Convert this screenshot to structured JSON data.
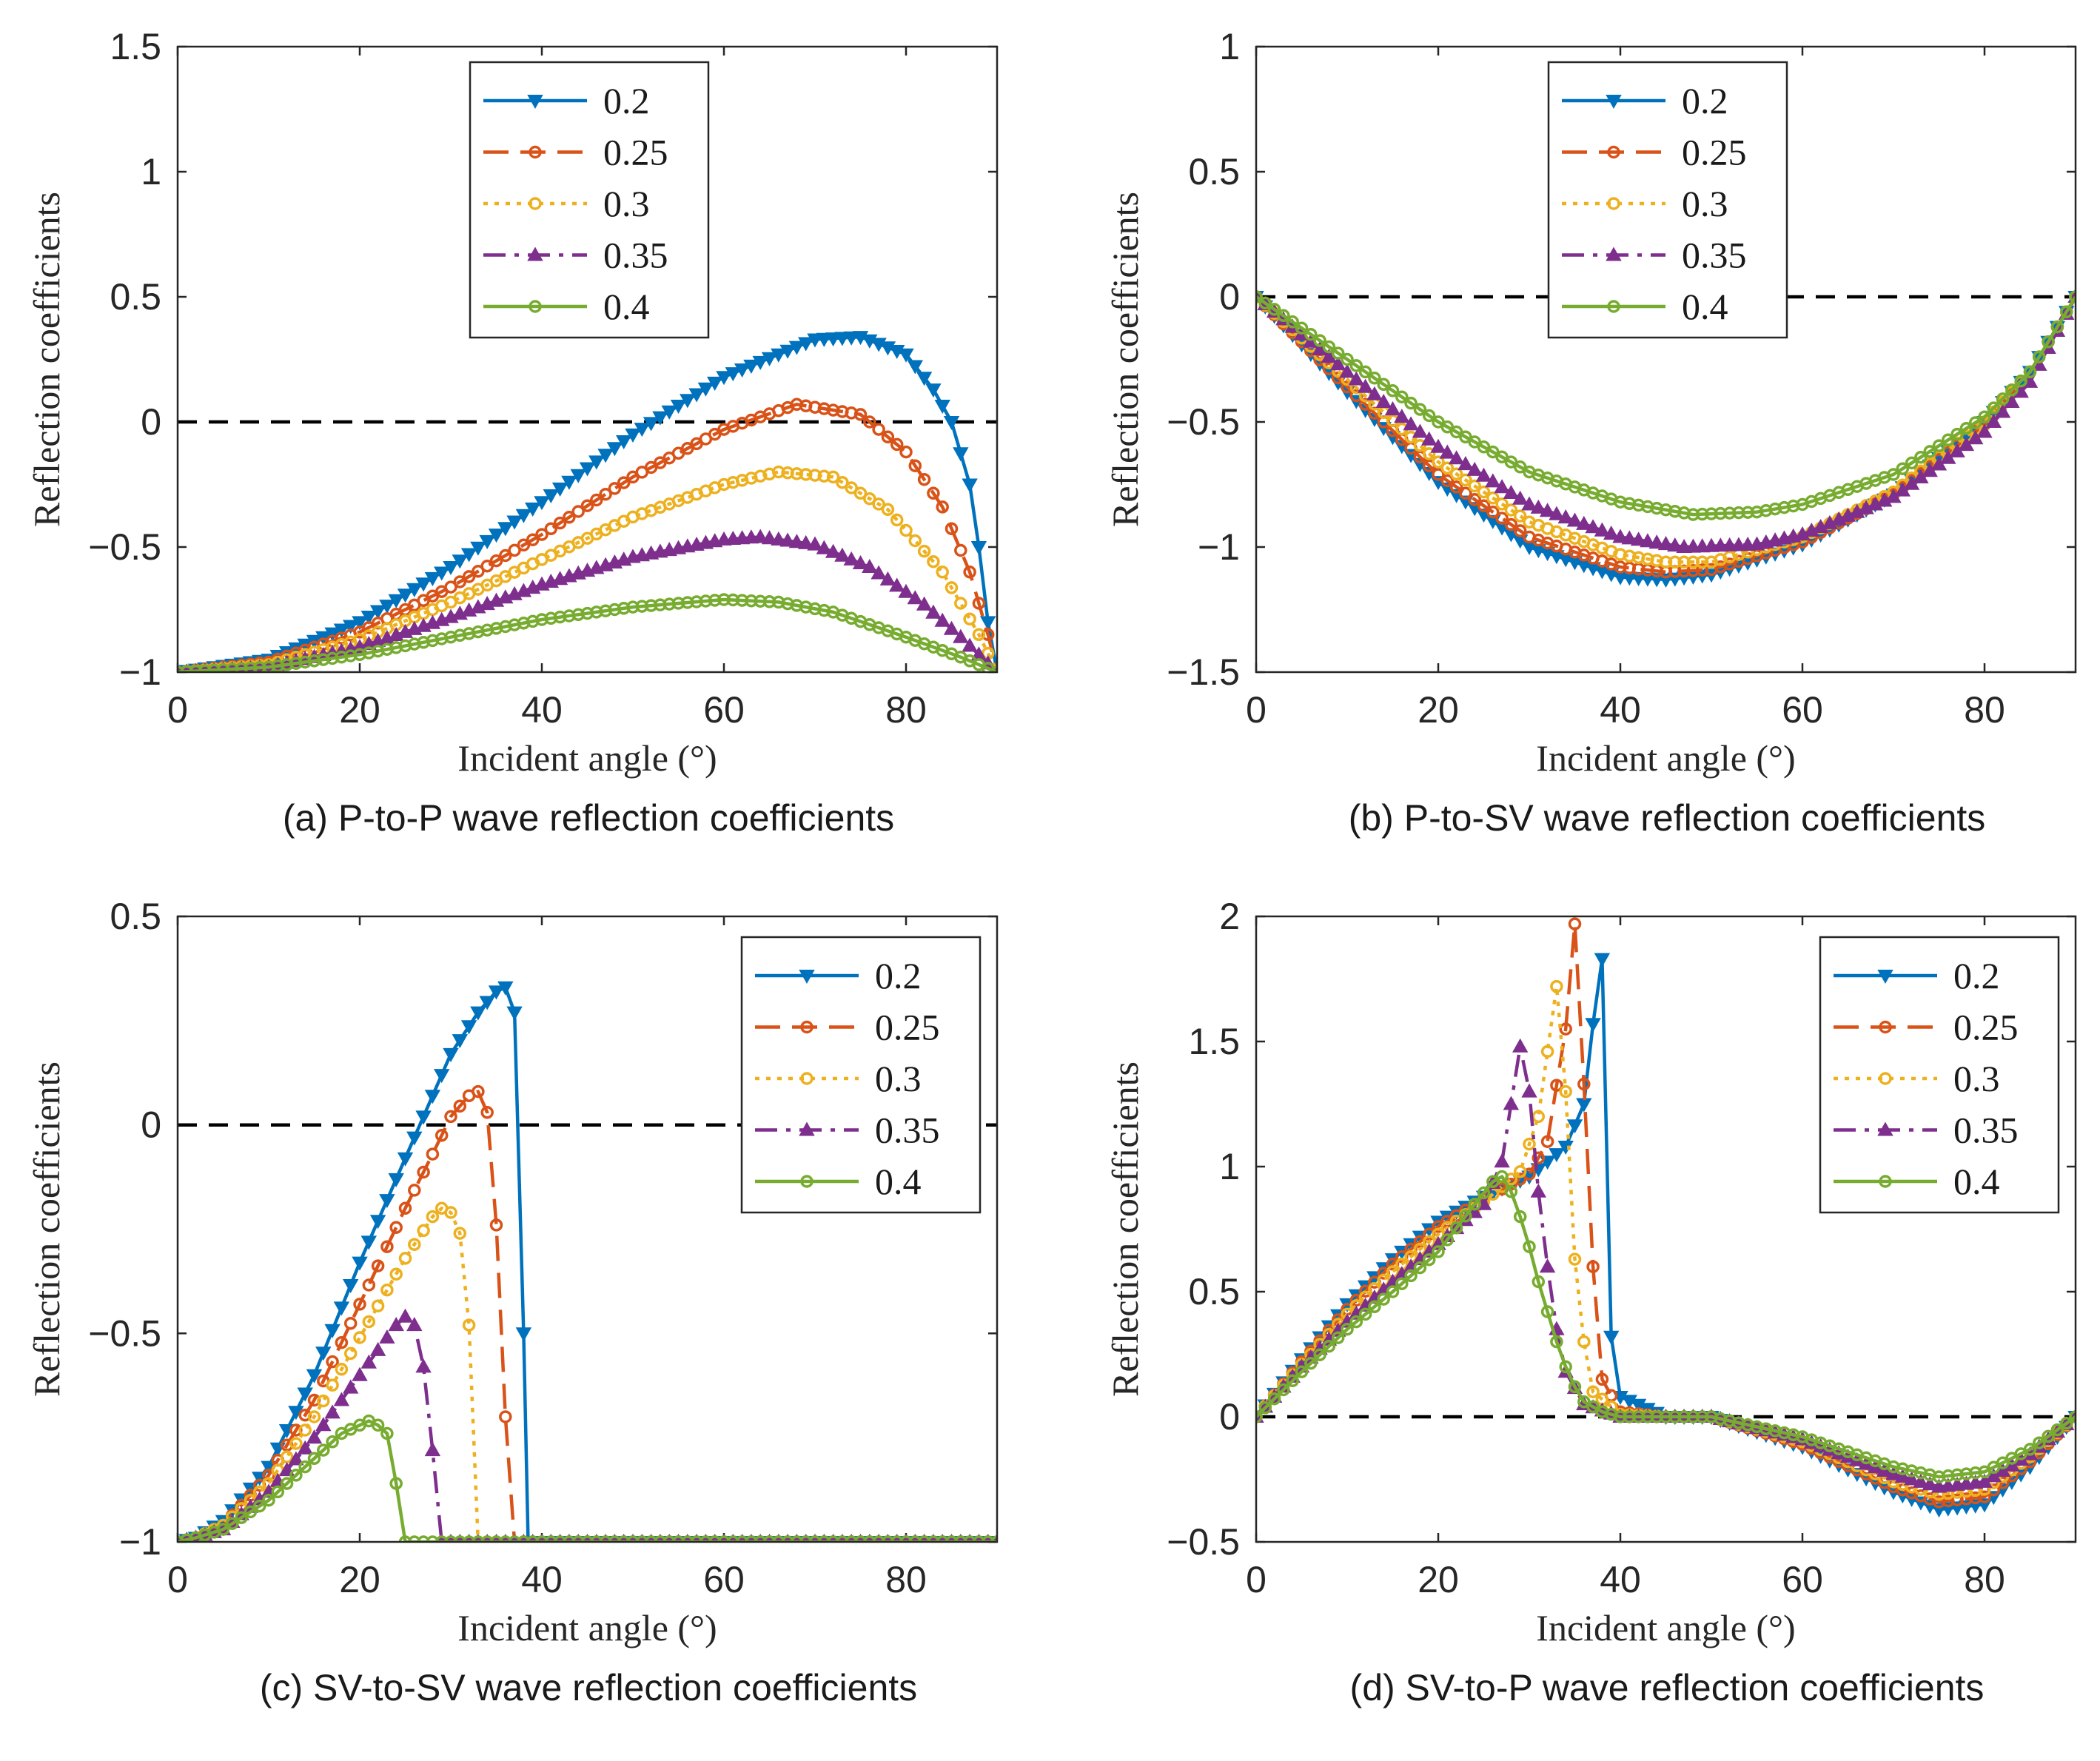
{
  "figure": {
    "background": "#ffffff",
    "series_styles": [
      {
        "name": "0.2",
        "color": "#0072BD",
        "dash": "solid",
        "marker": "triangle-down"
      },
      {
        "name": "0.25",
        "color": "#D95319",
        "dash": "dashed",
        "marker": "circle"
      },
      {
        "name": "0.3",
        "color": "#EDB120",
        "dash": "dotted",
        "marker": "circle"
      },
      {
        "name": "0.35",
        "color": "#7E2F8E",
        "dash": "dashdot",
        "marker": "triangle-up"
      },
      {
        "name": "0.4",
        "color": "#77AC30",
        "dash": "solid",
        "marker": "circle"
      }
    ]
  },
  "chart_data": [
    {
      "id": "a",
      "type": "line",
      "caption": "(a) P-to-P wave reflection coefficients",
      "xlabel": "Incident angle (°)",
      "ylabel": "Reflection coefficients",
      "xlim": [
        0,
        90
      ],
      "ylim": [
        -1,
        1.5
      ],
      "xticks": [
        0,
        20,
        40,
        60,
        80
      ],
      "yticks": [
        -1,
        -0.5,
        0,
        0.5,
        1,
        1.5
      ],
      "ytick_labels": [
        "−1",
        "−0.5",
        "0",
        "0.5",
        "1",
        "1.5"
      ],
      "reference_line": 0,
      "legend_position": "top-center",
      "series": [
        {
          "name": "0.2",
          "x": [
            0,
            10,
            20,
            30,
            40,
            50,
            60,
            70,
            75,
            80,
            83,
            85,
            87,
            88,
            89,
            90
          ],
          "values": [
            -1,
            -0.95,
            -0.8,
            -0.58,
            -0.32,
            -0.05,
            0.18,
            0.33,
            0.34,
            0.27,
            0.13,
            0,
            -0.25,
            -0.5,
            -0.8,
            -1
          ]
        },
        {
          "name": "0.25",
          "x": [
            0,
            10,
            20,
            30,
            40,
            50,
            60,
            68,
            75,
            80,
            84,
            87,
            89,
            90
          ],
          "values": [
            -1,
            -0.96,
            -0.84,
            -0.66,
            -0.45,
            -0.22,
            -0.03,
            0.07,
            0.03,
            -0.12,
            -0.34,
            -0.6,
            -0.85,
            -1
          ]
        },
        {
          "name": "0.3",
          "x": [
            0,
            10,
            20,
            30,
            40,
            50,
            60,
            66,
            72,
            78,
            84,
            88,
            90
          ],
          "values": [
            -1,
            -0.97,
            -0.87,
            -0.72,
            -0.55,
            -0.38,
            -0.25,
            -0.2,
            -0.22,
            -0.35,
            -0.6,
            -0.85,
            -1
          ]
        },
        {
          "name": "0.35",
          "x": [
            0,
            10,
            20,
            30,
            40,
            50,
            60,
            64,
            70,
            76,
            82,
            86,
            90
          ],
          "values": [
            -1,
            -0.98,
            -0.9,
            -0.78,
            -0.65,
            -0.54,
            -0.47,
            -0.46,
            -0.49,
            -0.58,
            -0.73,
            -0.86,
            -1
          ]
        },
        {
          "name": "0.4",
          "x": [
            0,
            10,
            20,
            30,
            40,
            50,
            60,
            66,
            72,
            80,
            86,
            90
          ],
          "values": [
            -1,
            -0.98,
            -0.93,
            -0.86,
            -0.79,
            -0.74,
            -0.71,
            -0.72,
            -0.76,
            -0.86,
            -0.94,
            -1
          ]
        }
      ]
    },
    {
      "id": "b",
      "type": "line",
      "caption": "(b) P-to-SV wave reflection coefficients",
      "xlabel": "Incident angle (°)",
      "ylabel": "Reflection coefficients",
      "xlim": [
        0,
        90
      ],
      "ylim": [
        -1.5,
        1
      ],
      "xticks": [
        0,
        20,
        40,
        60,
        80
      ],
      "yticks": [
        -1.5,
        -1,
        -0.5,
        0,
        0.5,
        1
      ],
      "ytick_labels": [
        "−1.5",
        "−1",
        "−0.5",
        "0",
        "0.5",
        "1"
      ],
      "reference_line": 0,
      "legend_position": "top-center",
      "series": [
        {
          "name": "0.2",
          "x": [
            0,
            10,
            20,
            30,
            40,
            45,
            50,
            60,
            70,
            80,
            85,
            90
          ],
          "values": [
            0,
            -0.38,
            -0.74,
            -1.0,
            -1.12,
            -1.13,
            -1.11,
            -0.99,
            -0.79,
            -0.5,
            -0.3,
            0
          ]
        },
        {
          "name": "0.25",
          "x": [
            0,
            10,
            20,
            30,
            40,
            45,
            50,
            60,
            70,
            80,
            85,
            90
          ],
          "values": [
            0,
            -0.36,
            -0.71,
            -0.96,
            -1.08,
            -1.1,
            -1.09,
            -0.98,
            -0.79,
            -0.51,
            -0.3,
            0
          ]
        },
        {
          "name": "0.3",
          "x": [
            0,
            10,
            20,
            30,
            40,
            45,
            50,
            60,
            70,
            80,
            85,
            90
          ],
          "values": [
            0,
            -0.33,
            -0.66,
            -0.9,
            -1.03,
            -1.06,
            -1.06,
            -0.96,
            -0.78,
            -0.5,
            -0.3,
            0
          ]
        },
        {
          "name": "0.35",
          "x": [
            0,
            10,
            20,
            30,
            40,
            47,
            55,
            60,
            70,
            80,
            85,
            90
          ],
          "values": [
            0,
            -0.3,
            -0.6,
            -0.83,
            -0.96,
            -1.0,
            -0.99,
            -0.95,
            -0.8,
            -0.54,
            -0.34,
            0
          ]
        },
        {
          "name": "0.4",
          "x": [
            0,
            10,
            20,
            30,
            40,
            48,
            55,
            60,
            70,
            80,
            85,
            90
          ],
          "values": [
            0,
            -0.25,
            -0.5,
            -0.7,
            -0.82,
            -0.87,
            -0.86,
            -0.83,
            -0.71,
            -0.48,
            -0.3,
            0
          ]
        }
      ]
    },
    {
      "id": "c",
      "type": "line",
      "caption": "(c) SV-to-SV wave reflection coefficients",
      "xlabel": "Incident angle (°)",
      "ylabel": "Reflection coefficients",
      "xlim": [
        0,
        90
      ],
      "ylim": [
        -1,
        0.5
      ],
      "xticks": [
        0,
        20,
        40,
        60,
        80
      ],
      "yticks": [
        -1,
        -0.5,
        0,
        0.5
      ],
      "ytick_labels": [
        "−1",
        "−0.5",
        "0",
        "0.5"
      ],
      "reference_line": 0,
      "legend_position": "top-right",
      "series": [
        {
          "name": "0.2",
          "x": [
            0,
            2,
            5,
            10,
            15,
            20,
            25,
            30,
            33,
            35,
            36,
            37,
            38,
            38.5,
            40,
            50,
            60,
            70,
            80,
            90
          ],
          "values": [
            -1,
            -0.99,
            -0.95,
            -0.82,
            -0.6,
            -0.33,
            -0.08,
            0.17,
            0.27,
            0.32,
            0.33,
            0.27,
            -0.5,
            -1,
            -1,
            -1,
            -1,
            -1,
            -1,
            -1
          ]
        },
        {
          "name": "0.25",
          "x": [
            0,
            2,
            5,
            10,
            15,
            20,
            25,
            28,
            30,
            32,
            33,
            34,
            35,
            36,
            37,
            40,
            50,
            60,
            70,
            80,
            90
          ],
          "values": [
            -1,
            -0.99,
            -0.96,
            -0.84,
            -0.66,
            -0.43,
            -0.2,
            -0.07,
            0.02,
            0.07,
            0.08,
            0.03,
            -0.24,
            -0.7,
            -1,
            -1,
            -1,
            -1,
            -1,
            -1,
            -1
          ]
        },
        {
          "name": "0.3",
          "x": [
            0,
            2,
            5,
            10,
            15,
            20,
            25,
            28,
            29,
            30,
            31,
            32,
            33,
            34,
            40,
            50,
            60,
            70,
            80,
            90
          ],
          "values": [
            -1,
            -0.99,
            -0.96,
            -0.86,
            -0.7,
            -0.51,
            -0.32,
            -0.22,
            -0.2,
            -0.21,
            -0.26,
            -0.48,
            -1,
            -1,
            -1,
            -1,
            -1,
            -1,
            -1,
            -1
          ]
        },
        {
          "name": "0.35",
          "x": [
            0,
            2,
            5,
            10,
            15,
            20,
            24,
            25,
            26,
            27,
            28,
            29,
            30,
            40,
            50,
            60,
            70,
            80,
            90
          ],
          "values": [
            -1,
            -0.99,
            -0.97,
            -0.88,
            -0.75,
            -0.6,
            -0.48,
            -0.46,
            -0.48,
            -0.58,
            -0.78,
            -1,
            -1,
            -1,
            -1,
            -1,
            -1,
            -1,
            -1
          ]
        },
        {
          "name": "0.4",
          "x": [
            0,
            2,
            5,
            10,
            15,
            18,
            20,
            21,
            22,
            23,
            24,
            25,
            30,
            40,
            50,
            60,
            70,
            80,
            90
          ],
          "values": [
            -1,
            -0.99,
            -0.97,
            -0.9,
            -0.8,
            -0.74,
            -0.72,
            -0.71,
            -0.72,
            -0.74,
            -0.86,
            -1,
            -1,
            -1,
            -1,
            -1,
            -1,
            -1,
            -1
          ]
        }
      ]
    },
    {
      "id": "d",
      "type": "line",
      "caption": "(d) SV-to-P wave reflection coefficients",
      "xlabel": "Incident angle (°)",
      "ylabel": "Reflection coefficients",
      "xlim": [
        0,
        90
      ],
      "ylim": [
        -0.5,
        2
      ],
      "xticks": [
        0,
        20,
        40,
        60,
        80
      ],
      "yticks": [
        -0.5,
        0,
        0.5,
        1,
        1.5,
        2
      ],
      "ytick_labels": [
        "−0.5",
        "0",
        "0.5",
        "1",
        "1.5",
        "2"
      ],
      "reference_line": 0,
      "legend_position": "top-right",
      "series": [
        {
          "name": "0.2",
          "x": [
            0,
            5,
            10,
            15,
            20,
            25,
            30,
            34,
            36,
            37,
            38,
            39,
            40,
            45,
            50,
            60,
            70,
            75,
            80,
            85,
            90
          ],
          "values": [
            0,
            0.23,
            0.45,
            0.63,
            0.78,
            0.88,
            0.96,
            1.08,
            1.25,
            1.57,
            1.83,
            0.32,
            0.08,
            0,
            0,
            -0.12,
            -0.3,
            -0.37,
            -0.35,
            -0.2,
            0
          ]
        },
        {
          "name": "0.25",
          "x": [
            0,
            5,
            10,
            15,
            20,
            25,
            30,
            32,
            34,
            35,
            36,
            37,
            38,
            40,
            45,
            50,
            60,
            70,
            75,
            80,
            85,
            90
          ],
          "values": [
            0,
            0.22,
            0.43,
            0.61,
            0.76,
            0.87,
            0.97,
            1.1,
            1.55,
            1.97,
            1.33,
            0.6,
            0.15,
            0.02,
            0,
            0,
            -0.11,
            -0.28,
            -0.34,
            -0.32,
            -0.18,
            0
          ]
        },
        {
          "name": "0.3",
          "x": [
            0,
            5,
            10,
            15,
            20,
            25,
            29,
            31,
            33,
            34,
            35,
            36,
            37,
            40,
            45,
            50,
            60,
            70,
            75,
            80,
            85,
            90
          ],
          "values": [
            0,
            0.21,
            0.41,
            0.58,
            0.73,
            0.86,
            0.98,
            1.2,
            1.72,
            1.3,
            0.63,
            0.3,
            0.1,
            0.01,
            0,
            0,
            -0.1,
            -0.26,
            -0.31,
            -0.29,
            -0.16,
            0
          ]
        },
        {
          "name": "0.35",
          "x": [
            0,
            5,
            10,
            15,
            20,
            25,
            27,
            29,
            30,
            31,
            32,
            33,
            34,
            36,
            40,
            45,
            50,
            60,
            70,
            75,
            80,
            85,
            90
          ],
          "values": [
            0,
            0.2,
            0.38,
            0.54,
            0.69,
            0.85,
            1.02,
            1.48,
            1.3,
            0.9,
            0.6,
            0.35,
            0.18,
            0.05,
            0,
            0,
            0,
            -0.09,
            -0.23,
            -0.28,
            -0.26,
            -0.15,
            0
          ]
        },
        {
          "name": "0.4",
          "x": [
            0,
            5,
            10,
            15,
            20,
            24,
            26,
            27,
            28,
            29,
            30,
            31,
            32,
            33,
            34,
            35,
            36,
            38,
            40,
            45,
            50,
            60,
            70,
            75,
            80,
            85,
            90
          ],
          "values": [
            0,
            0.18,
            0.35,
            0.5,
            0.66,
            0.85,
            0.94,
            0.96,
            0.9,
            0.8,
            0.68,
            0.54,
            0.42,
            0.3,
            0.2,
            0.12,
            0.06,
            0.02,
            0,
            0,
            0,
            -0.08,
            -0.2,
            -0.24,
            -0.22,
            -0.13,
            0
          ]
        }
      ]
    }
  ]
}
